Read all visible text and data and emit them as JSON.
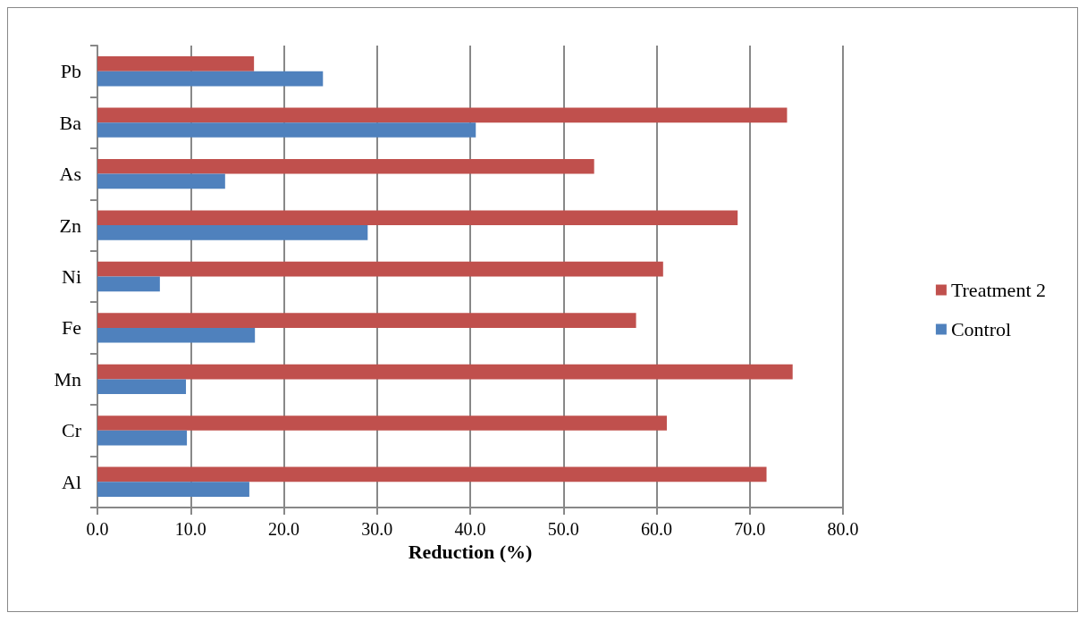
{
  "chart_data": {
    "type": "bar",
    "orientation": "horizontal",
    "xlabel": "Reduction (%)",
    "categories": [
      "Pb",
      "Ba",
      "As",
      "Zn",
      "Ni",
      "Fe",
      "Mn",
      "Cr",
      "Al"
    ],
    "series": [
      {
        "name": "Treatment 2",
        "color": "#c0504d",
        "values": [
          16.8,
          74.0,
          53.3,
          68.7,
          60.7,
          57.8,
          74.6,
          61.1,
          71.8
        ]
      },
      {
        "name": "Control",
        "color": "#4f81bd",
        "values": [
          24.2,
          40.6,
          13.7,
          29.0,
          6.7,
          16.9,
          9.5,
          9.6,
          16.3
        ]
      }
    ],
    "xlim": [
      0,
      80
    ],
    "xticks": [
      {
        "value": 0,
        "label": "0.0"
      },
      {
        "value": 10,
        "label": "10.0"
      },
      {
        "value": 20,
        "label": "20.0"
      },
      {
        "value": 30,
        "label": "30.0"
      },
      {
        "value": 40,
        "label": "40.0"
      },
      {
        "value": 50,
        "label": "50.0"
      },
      {
        "value": 60,
        "label": "60.0"
      },
      {
        "value": 70,
        "label": "70.0"
      },
      {
        "value": 80,
        "label": "80.0"
      }
    ],
    "grid": "x",
    "legend": "right"
  }
}
